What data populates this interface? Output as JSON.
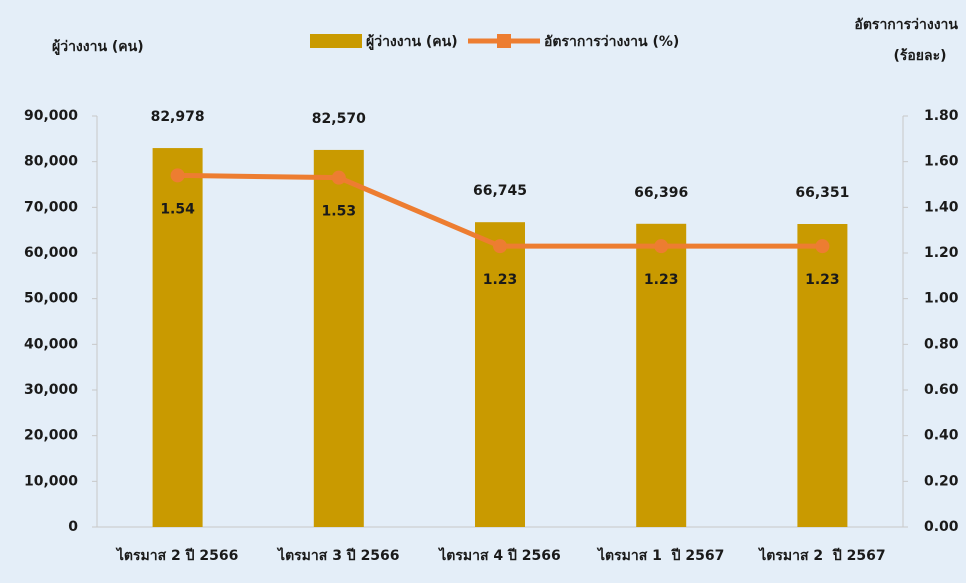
{
  "chart_data": {
    "type": "bar_line",
    "ylabel": "ผู้ว่างงาน (คน)",
    "y2label": [
      "อัตราการว่างงาน",
      "(ร้อยละ)"
    ],
    "categories": [
      "ไตรมาส 2 ปี 2566",
      "ไตรมาส 3 ปี 2566",
      "ไตรมาส 4 ปี 2566",
      "ไตรมาส 1  ปี 2567",
      "ไตรมาส 2  ปี 2567"
    ],
    "series": [
      {
        "name": "ผู้ว่างงาน (คน)",
        "type": "bar",
        "color": "#c99a00",
        "axis": "y",
        "values": [
          82978,
          82570,
          66745,
          66396,
          66351
        ],
        "value_labels": [
          "82,978",
          "82,570",
          "66,745",
          "66,396",
          "66,351"
        ]
      },
      {
        "name": "อัตราการว่างงาน (%)",
        "type": "line",
        "color": "#ed7d31",
        "axis": "y2",
        "values": [
          1.54,
          1.53,
          1.23,
          1.23,
          1.23
        ]
      }
    ],
    "ylim": [
      0,
      90000
    ],
    "yticks": [
      0,
      {
        "value": 10000,
        "label": "10,000"
      },
      {
        "value": 20000,
        "label": "20,000"
      },
      {
        "value": 30000,
        "label": "30,000"
      },
      {
        "value": 40000,
        "label": "40,000"
      },
      {
        "value": 50000,
        "label": "50,000"
      },
      {
        "value": 60000,
        "label": "60,000"
      },
      {
        "value": 70000,
        "label": "70,000"
      },
      {
        "value": 80000,
        "label": "80,000"
      },
      {
        "value": 90000,
        "label": "90,000"
      }
    ],
    "y2lim": [
      0,
      1.8
    ],
    "y2ticks": [
      {
        "value": 0,
        "label": "0.00"
      },
      {
        "value": 0.2,
        "label": "0.20"
      },
      {
        "value": 0.4,
        "label": "0.40"
      },
      {
        "value": 0.6,
        "label": "0.60"
      },
      {
        "value": 0.8,
        "label": "0.80"
      },
      {
        "value": 1,
        "label": "1.00"
      },
      {
        "value": 1.2,
        "label": "1.20"
      },
      {
        "value": 1.4,
        "label": "1.40"
      },
      {
        "value": 1.6,
        "label": "1.60"
      },
      {
        "value": 1.8,
        "label": "1.80"
      }
    ],
    "legend": "top"
  }
}
